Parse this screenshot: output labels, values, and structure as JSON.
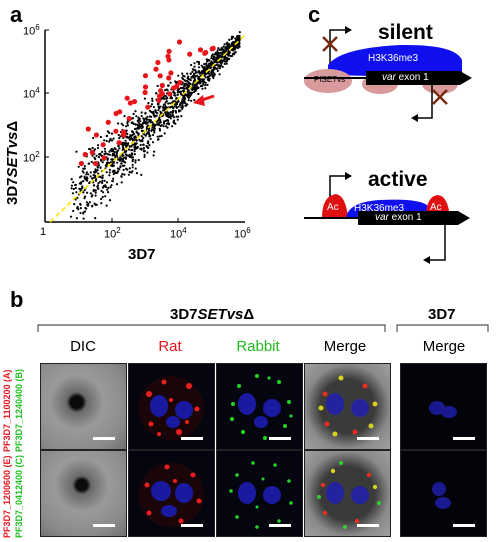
{
  "panel_a": {
    "letter": "a",
    "ylabel_main": "3D7",
    "ylabel_italic": "SETvs",
    "ylabel_sym": "Δ",
    "xlabel": "3D7",
    "y_ticks": [
      {
        "base": "10",
        "exp": "6"
      },
      {
        "base": "10",
        "exp": "4"
      },
      {
        "base": "10",
        "exp": "2"
      }
    ],
    "x_ticks": [
      {
        "base": "1",
        "exp": ""
      },
      {
        "base": "10",
        "exp": "2"
      },
      {
        "base": "10",
        "exp": "4"
      },
      {
        "base": "10",
        "exp": "6"
      }
    ],
    "colors": {
      "points": "#000000",
      "highlight": "#e8141c",
      "fit": "#ffe600"
    }
  },
  "panel_b": {
    "letter": "b",
    "group1_title_main": "3D7",
    "group1_title_italic": "SETvs",
    "group1_title_sym": "Δ",
    "group2_title": "3D7",
    "columns": [
      {
        "label": "DIC",
        "color": "#000000"
      },
      {
        "label": "Rat",
        "color": "#e8141c"
      },
      {
        "label": "Rabbit",
        "color": "#1fbf1f"
      },
      {
        "label": "Merge",
        "color": "#000000"
      }
    ],
    "column_3d7": {
      "label": "Merge",
      "color": "#000000"
    },
    "rows": [
      {
        "red_label": "PF3D7_1100200 (A)",
        "green_label": "PF3D7_1240400 (B)"
      },
      {
        "red_label": "PF3D7_1200600 (E)",
        "green_label": "PF3D7_0412400 (C)"
      }
    ]
  },
  "panel_c": {
    "letter": "c",
    "silent_label": "silent",
    "active_label": "active",
    "silent_mark": "H3K36me3",
    "silent_exon": "var exon 1",
    "silent_protein": "PfSETvs",
    "active_mark": "H3K36me3",
    "active_exon": "var exon 1",
    "active_ac_left": "Ac",
    "active_ac_right": "Ac",
    "exon_italic": "var",
    "exon_rest": " exon 1",
    "colors": {
      "h3k36": "#1010ee",
      "setvs": "#d89a9a",
      "ac": "#e01010",
      "exon": "#000000"
    }
  }
}
